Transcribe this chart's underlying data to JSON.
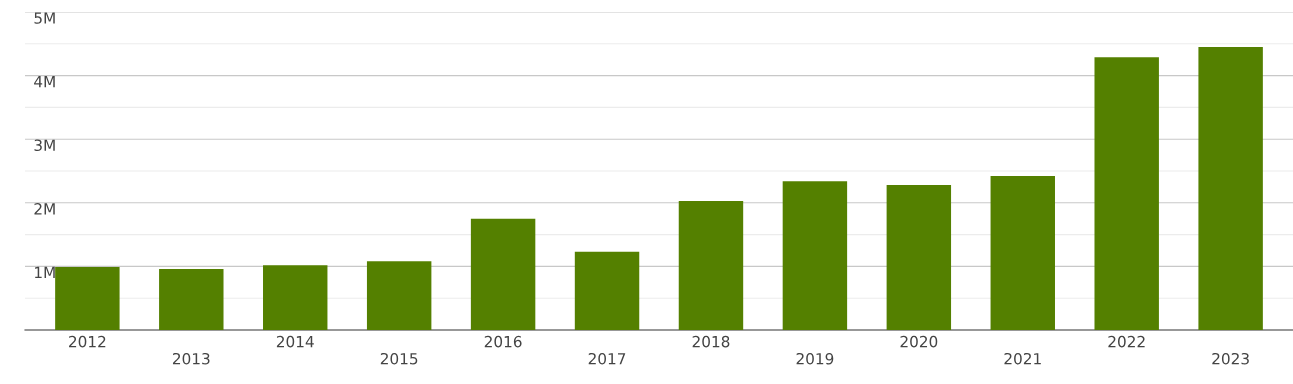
{
  "chart_data": {
    "type": "bar",
    "categories": [
      "2012",
      "2013",
      "2014",
      "2015",
      "2016",
      "2017",
      "2018",
      "2019",
      "2020",
      "2021",
      "2022",
      "2023"
    ],
    "values": [
      0.99,
      0.96,
      1.02,
      1.08,
      1.75,
      1.23,
      2.03,
      2.34,
      2.28,
      2.42,
      4.29,
      4.45
    ],
    "color": "#548000",
    "ylim": [
      0,
      5
    ],
    "yticks": [
      {
        "value": 0.5,
        "label": null
      },
      {
        "value": 1,
        "label": "1M"
      },
      {
        "value": 1.5,
        "label": null
      },
      {
        "value": 2,
        "label": "2M"
      },
      {
        "value": 2.5,
        "label": null
      },
      {
        "value": 3,
        "label": "3M"
      },
      {
        "value": 3.5,
        "label": null
      },
      {
        "value": 4,
        "label": "4M"
      },
      {
        "value": 4.5,
        "label": null
      },
      {
        "value": 5,
        "label": "5M"
      }
    ],
    "grid": "y"
  }
}
